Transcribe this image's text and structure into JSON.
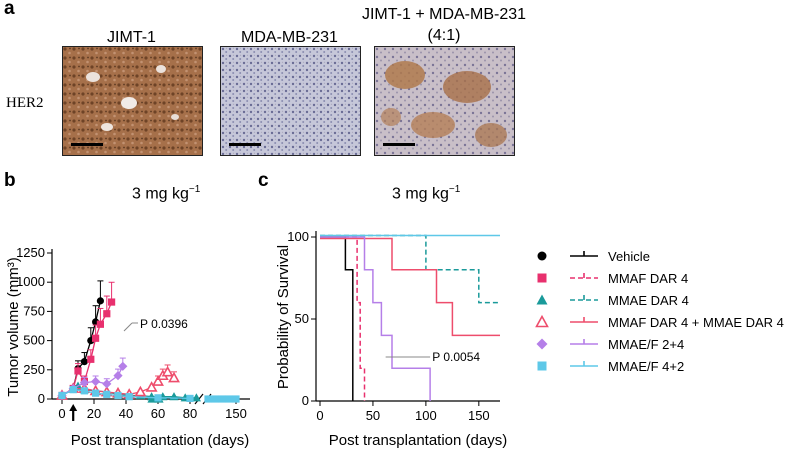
{
  "panels": {
    "a": "a",
    "b": "b",
    "c": "c"
  },
  "panel_a": {
    "columns": [
      "JIMT-1",
      "MDA-MB-231",
      "JIMT-1 + MDA-MB-231",
      "(4:1)"
    ],
    "row_label": "HER2"
  },
  "titles": {
    "b": "3 mg kg",
    "c": "3 mg kg",
    "exponent": "−1"
  },
  "colors": {
    "vehicle": "#000000",
    "mmaf": "#e8306e",
    "mmae": "#1a9a9a",
    "combo": "#ee4d6c",
    "mmae_f_24": "#b57fe8",
    "mmae_f_42": "#5ec8e8"
  },
  "chart_data": [
    {
      "type": "line",
      "title": "3 mg kg−1",
      "xlabel": "Post transplantation (days)",
      "ylabel": "Tumor volume (mm³)",
      "xlim": [
        -5,
        160
      ],
      "ylim": [
        0,
        1250
      ],
      "x_ticks": [
        0,
        20,
        40,
        60,
        80,
        150
      ],
      "y_ticks": [
        0,
        250,
        500,
        750,
        1000,
        1250
      ],
      "axis_break_x": 85,
      "annotation": "P 0.0396",
      "treatment_day": 7,
      "series": [
        {
          "name": "Vehicle",
          "x": [
            0,
            7,
            10,
            14,
            18,
            21,
            24
          ],
          "y": [
            30,
            90,
            260,
            320,
            500,
            660,
            840
          ]
        },
        {
          "name": "MMAF DAR 4",
          "x": [
            0,
            7,
            10,
            14,
            18,
            21,
            24,
            28,
            31
          ],
          "y": [
            30,
            90,
            240,
            150,
            340,
            520,
            640,
            730,
            830
          ]
        },
        {
          "name": "MMAE DAR 4",
          "x": [
            0,
            7,
            10,
            14,
            21,
            28,
            35,
            42,
            49,
            56,
            63,
            70,
            77,
            84,
            90,
            95
          ],
          "y": [
            30,
            90,
            110,
            80,
            70,
            60,
            40,
            30,
            30,
            20,
            20,
            20,
            10,
            10,
            0,
            0
          ]
        },
        {
          "name": "MMAF DAR 4 + MMAE DAR 4",
          "x": [
            0,
            7,
            14,
            21,
            28,
            35,
            42,
            49,
            56,
            60,
            63,
            66,
            70
          ],
          "y": [
            30,
            90,
            90,
            70,
            60,
            50,
            40,
            60,
            100,
            150,
            200,
            230,
            180
          ]
        },
        {
          "name": "MMAE/F 2+4",
          "x": [
            0,
            7,
            14,
            21,
            28,
            35,
            38
          ],
          "y": [
            30,
            90,
            140,
            150,
            130,
            200,
            280
          ]
        },
        {
          "name": "MMAE/F 4+2",
          "x": [
            0,
            7,
            14,
            21,
            28,
            35,
            42,
            60,
            80,
            130,
            135,
            140,
            145,
            150
          ],
          "y": [
            30,
            80,
            70,
            50,
            40,
            30,
            20,
            10,
            5,
            0,
            0,
            0,
            0,
            0
          ]
        }
      ]
    },
    {
      "type": "line",
      "title": "3 mg kg−1",
      "xlabel": "Post transplantation (days)",
      "ylabel": "Probability of Survival",
      "xlim": [
        0,
        170
      ],
      "ylim": [
        0,
        100
      ],
      "x_ticks": [
        0,
        50,
        100,
        150
      ],
      "y_ticks": [
        0,
        50,
        100
      ],
      "annotation": "P 0.0054",
      "series": [
        {
          "name": "Vehicle",
          "x": [
            0,
            24,
            24,
            31,
            31
          ],
          "y": [
            100,
            100,
            80,
            80,
            0
          ]
        },
        {
          "name": "MMAF DAR 4",
          "x": [
            0,
            35,
            35,
            38,
            38,
            42,
            42
          ],
          "y": [
            100,
            100,
            60,
            60,
            20,
            20,
            0
          ]
        },
        {
          "name": "MMAE DAR 4",
          "x": [
            0,
            100,
            100,
            150,
            150,
            170
          ],
          "y": [
            100,
            100,
            80,
            80,
            60,
            60
          ]
        },
        {
          "name": "MMAF DAR 4 + MMAE DAR 4",
          "x": [
            0,
            68,
            68,
            110,
            110,
            125,
            125,
            170
          ],
          "y": [
            100,
            100,
            80,
            80,
            60,
            60,
            40,
            40
          ]
        },
        {
          "name": "MMAE/F 2+4",
          "x": [
            0,
            42,
            42,
            50,
            50,
            58,
            58,
            68,
            68,
            104,
            104
          ],
          "y": [
            100,
            100,
            80,
            80,
            60,
            60,
            40,
            40,
            20,
            20,
            0
          ]
        },
        {
          "name": "MMAE/F 4+2",
          "x": [
            0,
            170
          ],
          "y": [
            100,
            100
          ]
        }
      ]
    }
  ],
  "legend": [
    {
      "label": "Vehicle",
      "marker": "circle",
      "color": "vehicle",
      "dash": false
    },
    {
      "label": "MMAF DAR 4",
      "marker": "square",
      "color": "mmaf",
      "dash": true
    },
    {
      "label": "MMAE DAR 4",
      "marker": "triangle",
      "color": "mmae",
      "dash": true
    },
    {
      "label": "MMAF DAR 4 + MMAE DAR 4",
      "marker": "triangle-open",
      "color": "combo",
      "dash": false
    },
    {
      "label": "MMAE/F 2+4",
      "marker": "diamond",
      "color": "mmae_f_24",
      "dash": false
    },
    {
      "label": "MMAE/F 4+2",
      "marker": "square",
      "color": "mmae_f_42",
      "dash": false
    }
  ]
}
